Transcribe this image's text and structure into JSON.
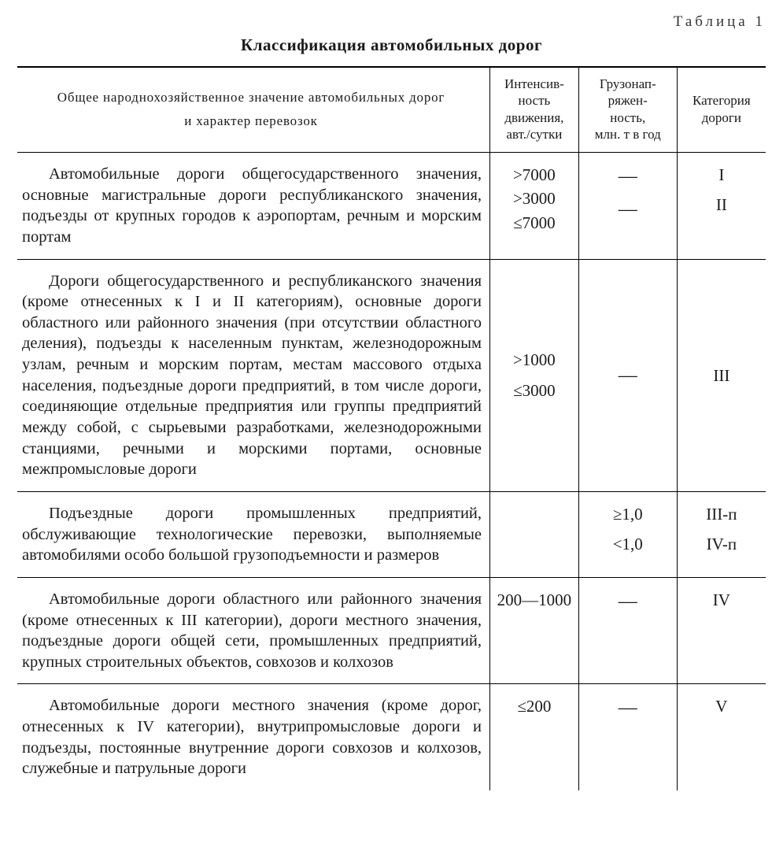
{
  "table_label": "Таблица 1",
  "title": "Классификация автомобильных дорог",
  "headers": {
    "h1_line1": "Общее народнохозяйственное значение автомобильных дорог",
    "h1_line2": "и характер перевозок",
    "h2": "Интенсив-\nность\nдвижения,\nавт./сутки",
    "h3": "Грузонап-\nряжен-\nность,\nмлн. т в год",
    "h4": "Категория\nдороги"
  },
  "rows": [
    {
      "desc": "Автомобильные дороги общегосударственного значения, основные магистральные дороги республиканского значения, подъезды от крупных городов к аэропортам, речным и морским портам",
      "intensity": [
        ">7000",
        ">3000",
        "≤7000"
      ],
      "load": [
        "—",
        "",
        "—"
      ],
      "category": [
        "I",
        "",
        "II"
      ]
    },
    {
      "desc": "Дороги общегосударственного и республиканского значения (кроме отнесенных к I и II категориям), основные дороги областного или районного значения (при отсутствии областного деления), подъезды к населенным пунктам, железнодорожным узлам, речным и морским портам, местам массового отдыха населения, подъездные дороги предприятий, в том числе дороги, соединяющие отдельные предприятия или группы предприятий между собой, с сырьевыми разработками, железнодорожными станциями, речными и морскими портами, основные межпромысловые дороги",
      "intensity": [
        ">1000",
        "",
        "≤3000"
      ],
      "load": [
        "",
        "—",
        ""
      ],
      "category": [
        "",
        "III",
        ""
      ],
      "center_v": true
    },
    {
      "desc": "Подъездные дороги промышленных предприятий, обслуживающие технологические перевозки, выполняемые автомобилями особо большой грузоподъемности и размеров",
      "intensity": [
        ""
      ],
      "load": [
        "≥1,0",
        "",
        "<1,0"
      ],
      "category": [
        "III-п",
        "",
        "IV-п"
      ]
    },
    {
      "desc": "Автомобильные дороги областного или районного значения (кроме отнесенных к III категории), дороги местного значения, подъездные дороги общей сети, промышленных предприятий, крупных строительных объектов, совхозов и колхозов",
      "intensity": [
        "200—1000"
      ],
      "load": [
        "—"
      ],
      "category": [
        "IV"
      ],
      "top_v": true
    },
    {
      "desc": "Автомобильные дороги местного значения (кроме дорог, отнесенных к IV категории), внутрипромысловые дороги и подъезды, постоянные внутренние дороги совхозов и колхозов, служебные и патрульные дороги",
      "intensity": [
        "≤200"
      ],
      "load": [
        "—"
      ],
      "category": [
        "V"
      ],
      "top_v": true,
      "last": true
    }
  ]
}
